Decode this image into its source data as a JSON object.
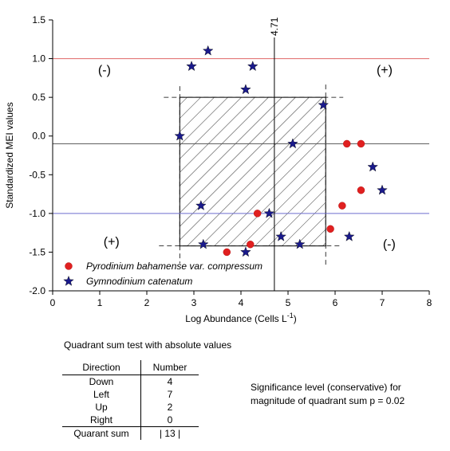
{
  "chart_data": {
    "type": "scatter",
    "title": "",
    "xlabel": "Log Abundance (Cells L",
    "xlabel_sup": "-1",
    "xlabel_end": ")",
    "ylabel": "Standardized MEI values",
    "xlim": [
      0,
      8
    ],
    "ylim": [
      -2.0,
      1.5
    ],
    "x_ticks": [
      "0",
      "1",
      "2",
      "3",
      "4",
      "5",
      "6",
      "7",
      "8"
    ],
    "y_ticks": [
      "-2.0",
      "-1.5",
      "-1.0",
      "-0.5",
      "0.0",
      "0.5",
      "1.0",
      "1.5"
    ],
    "grid": false,
    "legend_position": "bottom-left",
    "reference_lines": {
      "vertical": {
        "x": 4.71,
        "label": "4.71"
      },
      "horizontal": [
        {
          "y": 1.0,
          "color": "#e06666"
        },
        {
          "y": -0.1,
          "color": "#555555"
        },
        {
          "y": -1.0,
          "color": "#6d6dcf"
        }
      ]
    },
    "hatched_box": {
      "x": [
        2.7,
        5.8
      ],
      "y": [
        -1.42,
        0.5
      ]
    },
    "quadrant_labels": [
      {
        "text": "(-)",
        "x": 1.1,
        "y": 0.8
      },
      {
        "text": "(+)",
        "x": 7.05,
        "y": 0.8
      },
      {
        "text": "(+)",
        "x": 1.25,
        "y": -1.42
      },
      {
        "text": "(-)",
        "x": 7.15,
        "y": -1.45
      }
    ],
    "series": [
      {
        "name": "Pyrodinium bahamense",
        "name_suffix": " var. compressum",
        "marker": "circle",
        "color": "#e02020",
        "points": [
          [
            6.25,
            -0.1
          ],
          [
            6.55,
            -0.1
          ],
          [
            6.55,
            -0.7
          ],
          [
            6.15,
            -0.9
          ],
          [
            5.9,
            -1.2
          ],
          [
            4.35,
            -1.0
          ],
          [
            4.2,
            -1.4
          ],
          [
            3.7,
            -1.5
          ]
        ]
      },
      {
        "name": "Gymnodinium catenatum",
        "marker": "star",
        "color": "#1a1a8c",
        "points": [
          [
            3.3,
            1.1
          ],
          [
            2.95,
            0.9
          ],
          [
            4.25,
            0.9
          ],
          [
            4.1,
            0.6
          ],
          [
            5.75,
            0.4
          ],
          [
            2.7,
            0.0
          ],
          [
            5.1,
            -0.1
          ],
          [
            6.8,
            -0.4
          ],
          [
            7.0,
            -0.7
          ],
          [
            3.15,
            -0.9
          ],
          [
            4.6,
            -1.0
          ],
          [
            4.85,
            -1.3
          ],
          [
            6.3,
            -1.3
          ],
          [
            3.2,
            -1.4
          ],
          [
            5.25,
            -1.4
          ],
          [
            4.1,
            -1.5
          ]
        ]
      }
    ]
  },
  "summary": {
    "title": "Quadrant sum test with absolute values",
    "headers": [
      "Direction",
      "Number"
    ],
    "rows": [
      {
        "direction": "Down",
        "number": "4"
      },
      {
        "direction": "Left",
        "number": "7"
      },
      {
        "direction": "Up",
        "number": "2"
      },
      {
        "direction": "Right",
        "number": "0"
      }
    ],
    "total": {
      "label": "Quarant sum",
      "value": "| 13 |"
    },
    "significance_line1": "Significance level (conservative) for",
    "significance_line2": "magnitude of quadrant sum p = 0.02"
  }
}
